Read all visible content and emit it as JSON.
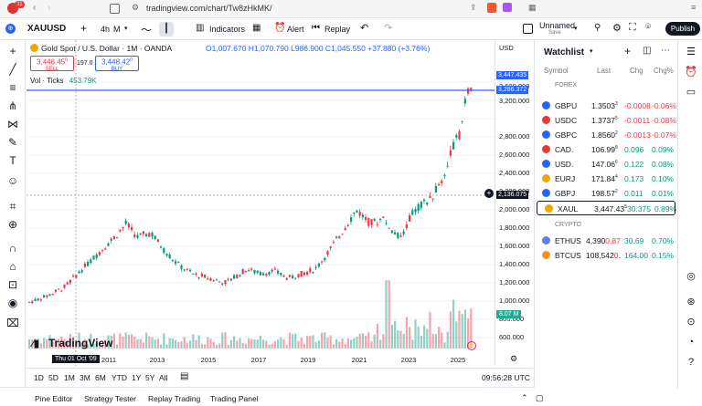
{
  "browser": {
    "url": "tradingview.com/chart/Tw8zHkMK/",
    "notification_count": "11"
  },
  "toolbar": {
    "symbol": "XAUUSD",
    "interval": "4h",
    "interval_alt": "M",
    "indicators_label": "Indicators",
    "alert_label": "Alert",
    "replay_label": "Replay",
    "layout_name": "Unnamed",
    "layout_status": "Save",
    "publish_label": "Publish"
  },
  "legend": {
    "title": "Gold Spot / U.S. Dollar · 1M · OANDA",
    "ohlc": "O1,007.670 H1,070.790 L986.900 C1,045.550 +37.880 (+3.76%)",
    "sell_price": "3,446.45",
    "sell_sup": "0",
    "sell_label": "SELL",
    "spread": "197.0",
    "buy_price": "3,448.42",
    "buy_sup": "0",
    "buy_label": "BUY",
    "vol_label": "Vol · Ticks",
    "vol_value": "453.79K"
  },
  "axis": {
    "currency": "USD",
    "price_ticks": [
      "3,600.000",
      "3,200.000",
      "2,800.000",
      "2,600.000",
      "2,400.000",
      "2,200.000",
      "2,000.000",
      "1,800.000",
      "1,600.000",
      "1,400.000",
      "1,200.000",
      "1,000.000",
      "800.000",
      "600.000"
    ],
    "last_price": "3,447.435",
    "line_price": "3,286.372",
    "crosshair_price": "2,136.075",
    "vol_badge": "8.07 M",
    "year_ticks": [
      "2011",
      "2013",
      "2015",
      "2017",
      "2019",
      "2021",
      "2023",
      "2025"
    ],
    "crosshair_date": "Thu 01 Oct '09"
  },
  "brand": "TradingView",
  "ranges": [
    "1D",
    "5D",
    "1M",
    "3M",
    "6M",
    "YTD",
    "1Y",
    "5Y",
    "All"
  ],
  "clock": "09:56:28 UTC",
  "panels": [
    "Pine Editor",
    "Strategy Tester",
    "Replay Trading",
    "Trading Panel"
  ],
  "watchlist": {
    "title": "Watchlist",
    "columns": [
      "Symbol",
      "Last",
      "Chg",
      "Chg%"
    ],
    "section_forex": "FOREX",
    "section_crypto": "CRYPTO",
    "rows": [
      {
        "sym": "GBPU",
        "last": "1.3503",
        "sup": "3",
        "chg": "-0.0008",
        "pct": "-0.06%",
        "dir": "neg"
      },
      {
        "sym": "USDC",
        "last": "1.3737",
        "sup": "5",
        "chg": "-0.0011",
        "pct": "-0.08%",
        "dir": "neg"
      },
      {
        "sym": "GBPC",
        "last": "1.8560",
        "sup": "2",
        "chg": "-0.0013",
        "pct": "-0.07%",
        "dir": "neg"
      },
      {
        "sym": "CAD.",
        "last": "106.99",
        "sup": "8",
        "chg": "0.096",
        "pct": "0.09%",
        "dir": "pos"
      },
      {
        "sym": "USD.",
        "last": "147.06",
        "sup": "6",
        "chg": "0.122",
        "pct": "0.08%",
        "dir": "pos"
      },
      {
        "sym": "EURJ",
        "last": "171.84",
        "sup": "4",
        "chg": "0.173",
        "pct": "0.10%",
        "dir": "pos"
      },
      {
        "sym": "GBPJ",
        "last": "198.57",
        "sup": "2",
        "chg": "0.011",
        "pct": "0.01%",
        "dir": "pos"
      },
      {
        "sym": "XAUL",
        "last": "3,447.43",
        "sup": "5",
        "chg": "30.375",
        "pct": "0.89%",
        "dir": "pos"
      }
    ],
    "crypto_rows": [
      {
        "sym": "ETHUS",
        "last": "4,390",
        "sup": "0.87",
        "chg": "30.69",
        "pct": "0.70%",
        "dir": "pos"
      },
      {
        "sym": "BTCUS",
        "last": "108,542",
        "sup": "0.",
        "chg": "164.00",
        "pct": "0.15%",
        "dir": "pos"
      }
    ]
  },
  "colors": {
    "up": "#089981",
    "down": "#f23645",
    "line": "#2962ff"
  }
}
